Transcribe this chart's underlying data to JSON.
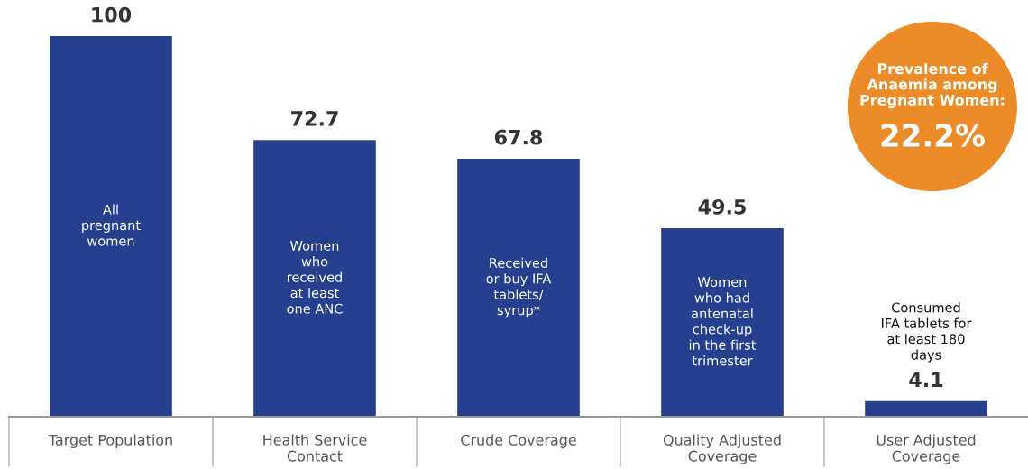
{
  "chart_data": {
    "type": "bar",
    "categories": [
      "Target Population",
      "Health Service\nContact",
      "Crude Coverage",
      "Quality Adjusted\nCoverage",
      "User Adjusted\nCoverage"
    ],
    "values": [
      100,
      72.7,
      67.8,
      49.5,
      4.1
    ],
    "color": "#24408f",
    "data_labels": true,
    "ylim": [
      0,
      100
    ],
    "tick_labels": "x",
    "annotations": [
      "All\npregnant\nwomen",
      "Women\nwho\nreceived\nat least\none ANC",
      "Received\nor buy IFA\ntablets/\nsyrup*",
      "Women\nwho had\nantenatal\ncheck-up\nin the first\ntrimester",
      "Consumed\nIFA tablets for\nat least 180\ndays",
      "Prevalence of\nAnaemia among\nPregnant Women:",
      "22.2%"
    ]
  }
}
